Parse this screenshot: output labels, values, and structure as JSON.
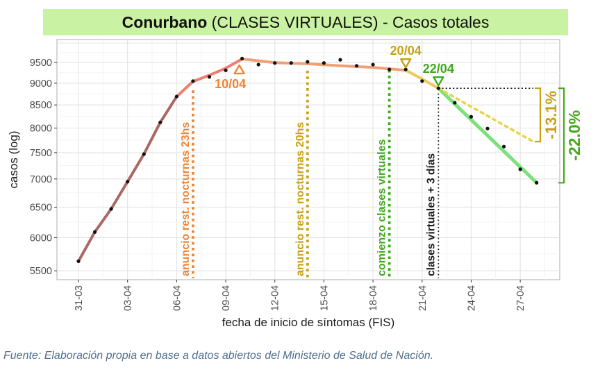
{
  "title": {
    "bold": "Conurbano",
    "rest": " (CLASES VIRTUALES) - Casos totales"
  },
  "footer": "Fuente: Elaboración propia en base a datos abiertos del Ministerio de Salud de Nación.",
  "colors": {
    "title_bg": "#c9f3a2",
    "panel_border": "#b9b9b9",
    "grid_major": "#e3e3e3",
    "grid_minor": "#f0f0f0",
    "axis_text": "#4d4d4d",
    "tick_mark": "#333333",
    "point": "#111111",
    "trend_rise_early": "#ab6862",
    "trend_rise_late": "#ee7d72",
    "trend_plateau": "#efa077",
    "trend_transition": "#ecc95f",
    "trend_decline": "#7ce07c",
    "projection": "#e8d44f",
    "event_orange": "#ef8432",
    "event_gold": "#c7a113",
    "event_green": "#3fa81c",
    "event_black": "#1a1a1a",
    "drop_gold": "#c7a113",
    "drop_green": "#44a81d",
    "source_text": "#4e6e8e"
  },
  "chart_data": {
    "type": "line",
    "title": "Conurbano (CLASES VIRTUALES) - Casos totales",
    "xlabel": "fecha de inicio de síntomas (FIS)",
    "ylabel": "casos (log)",
    "yscale": "log",
    "ylim": [
      5370,
      10100
    ],
    "grid": true,
    "yticks": [
      5500,
      6000,
      6500,
      7000,
      7500,
      8000,
      8500,
      9000,
      9500
    ],
    "ygrid_major": [
      5500,
      6000,
      6500,
      7000,
      7500,
      8000,
      8500,
      9000,
      9500,
      10000
    ],
    "ygrid_minor": [
      5750,
      6250,
      6750,
      7250,
      7750,
      8250,
      8750,
      9250,
      9750
    ],
    "xtick_labels": [
      "31-03",
      "03-04",
      "06-04",
      "09-04",
      "12-04",
      "15-04",
      "18-04",
      "21-04",
      "24-04",
      "27-04"
    ],
    "xtick_days": [
      0,
      3,
      6,
      9,
      12,
      15,
      18,
      21,
      24,
      27
    ],
    "dates": [
      "31-03",
      "01-04",
      "02-04",
      "03-04",
      "04-04",
      "05-04",
      "06-04",
      "07-04",
      "08-04",
      "09-04",
      "10-04",
      "11-04",
      "12-04",
      "13-04",
      "14-04",
      "15-04",
      "16-04",
      "17-04",
      "18-04",
      "19-04",
      "20-04",
      "21-04",
      "22-04",
      "23-04",
      "24-04",
      "25-04",
      "26-04",
      "27-04",
      "28-04"
    ],
    "cases": [
      5640,
      6090,
      6470,
      6950,
      7470,
      8120,
      8690,
      9050,
      9150,
      9310,
      9600,
      9450,
      9490,
      9490,
      9520,
      9490,
      9570,
      9420,
      9450,
      9330,
      9330,
      9050,
      8880,
      8550,
      8240,
      7990,
      7620,
      7180,
      6930
    ],
    "trend_segments": [
      {
        "name": "rise-early",
        "color_key": "trend_rise_early",
        "width": 4,
        "dashed": false,
        "points": [
          [
            0,
            5640
          ],
          [
            1,
            6090
          ],
          [
            2,
            6470
          ],
          [
            3,
            6950
          ],
          [
            4,
            7470
          ],
          [
            5,
            8120
          ],
          [
            6,
            8690
          ]
        ]
      },
      {
        "name": "rise-late",
        "color_key": "trend_rise_late",
        "width": 4,
        "dashed": false,
        "points": [
          [
            6,
            8690
          ],
          [
            7,
            9040
          ],
          [
            8,
            9190
          ],
          [
            9,
            9360
          ],
          [
            10,
            9590
          ]
        ]
      },
      {
        "name": "plateau",
        "color_key": "trend_plateau",
        "width": 4,
        "dashed": false,
        "points": [
          [
            10,
            9590
          ],
          [
            12,
            9500
          ],
          [
            14,
            9470
          ],
          [
            16,
            9420
          ],
          [
            18,
            9380
          ],
          [
            20,
            9310
          ]
        ]
      },
      {
        "name": "transition",
        "color_key": "trend_transition",
        "width": 4,
        "dashed": false,
        "points": [
          [
            20,
            9310
          ],
          [
            21,
            9100
          ],
          [
            22,
            8880
          ]
        ]
      },
      {
        "name": "decline",
        "color_key": "trend_decline",
        "width": 5,
        "dashed": false,
        "points": [
          [
            22,
            8880
          ],
          [
            28,
            6930
          ]
        ]
      },
      {
        "name": "projection",
        "color_key": "projection",
        "width": 3.6,
        "dashed": true,
        "points": [
          [
            22,
            8880
          ],
          [
            27.8,
            7720
          ]
        ]
      }
    ],
    "event_lines": [
      {
        "day": 7,
        "top_value": 8830,
        "color_key": "event_orange",
        "style": "chunky",
        "label": "anuncio rest. nocturnas 23hs"
      },
      {
        "day": 14,
        "top_value": 9300,
        "color_key": "event_gold",
        "style": "chunky",
        "label": "anuncio rest. nocturnas 20hs"
      },
      {
        "day": 19,
        "top_value": 9320,
        "color_key": "event_green",
        "style": "chunky",
        "label": "comienzo clases virtuales"
      },
      {
        "day": 22,
        "top_value": 8760,
        "color_key": "event_black",
        "style": "fine",
        "label": "clases virtuales + 3 días"
      }
    ],
    "date_markers": [
      {
        "label": "10/04",
        "day": 10,
        "value": 9590,
        "color_key": "event_orange",
        "dir": "up"
      },
      {
        "label": "20/04",
        "day": 20,
        "value": 9310,
        "color_key": "event_gold",
        "dir": "down"
      },
      {
        "label": "22/04",
        "day": 22,
        "value": 8880,
        "color_key": "event_green",
        "dir": "down"
      }
    ],
    "reference_line": {
      "value": 8880,
      "from_day": 22,
      "to_day": 27.8
    },
    "drop_labels": [
      {
        "label": "-13.1%",
        "color_key": "drop_gold",
        "from_value": 8880,
        "to_value": 7720,
        "font": 22
      },
      {
        "label": "-22.0%",
        "color_key": "drop_green",
        "from_value": 8880,
        "to_value": 6930,
        "font": 23
      }
    ]
  }
}
